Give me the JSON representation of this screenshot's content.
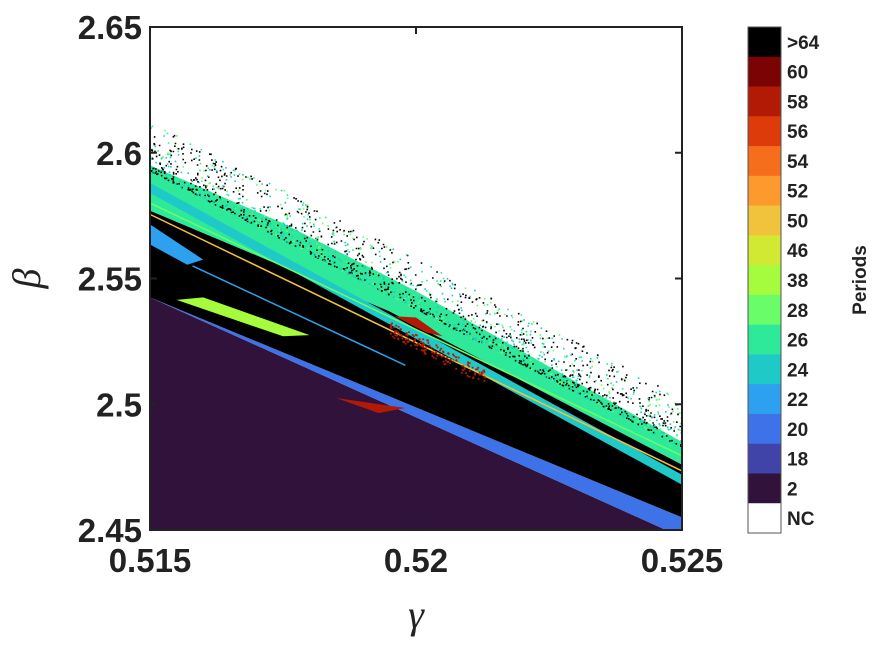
{
  "chart_data": {
    "type": "heatmap",
    "title": "",
    "xlabel": "γ",
    "ylabel": "β",
    "xlim": [
      0.515,
      0.525
    ],
    "ylim": [
      2.45,
      2.65
    ],
    "x_ticks": [
      0.515,
      0.52,
      0.525
    ],
    "x_tick_labels": [
      "0.515",
      "0.52",
      "0.525"
    ],
    "y_ticks": [
      2.45,
      2.5,
      2.55,
      2.6,
      2.65
    ],
    "y_tick_labels": [
      "2.45",
      "2.5",
      "2.55",
      "2.6",
      "2.65"
    ],
    "grid": false,
    "colorbar": {
      "title": "Periods",
      "placement": "right",
      "categories": [
        {
          "label": ">64",
          "color": "#000000"
        },
        {
          "label": "60",
          "color": "#7a0403"
        },
        {
          "label": "58",
          "color": "#b21a05"
        },
        {
          "label": "56",
          "color": "#dd3c0a"
        },
        {
          "label": "54",
          "color": "#f66e1c"
        },
        {
          "label": "52",
          "color": "#fd9a2e"
        },
        {
          "label": "50",
          "color": "#f1c23b"
        },
        {
          "label": "46",
          "color": "#d2e934"
        },
        {
          "label": "38",
          "color": "#a4fc3c"
        },
        {
          "label": "28",
          "color": "#6afd6a"
        },
        {
          "label": "26",
          "color": "#2fe99a"
        },
        {
          "label": "24",
          "color": "#1fc9c8"
        },
        {
          "label": "22",
          "color": "#2ea0f0"
        },
        {
          "label": "20",
          "color": "#3e72e8"
        },
        {
          "label": "18",
          "color": "#4043a8"
        },
        {
          "label": "2",
          "color": "#30123b"
        },
        {
          "label": "NC",
          "color": "#ffffff"
        }
      ]
    },
    "regions": [
      {
        "period": "2",
        "color": "#30123b",
        "polygon": [
          [
            0.515,
            2.45
          ],
          [
            0.515,
            2.5425
          ],
          [
            0.5247,
            2.45
          ]
        ]
      },
      {
        "period": "20",
        "color": "#3e72e8",
        "polygon": [
          [
            0.515,
            2.5425
          ],
          [
            0.5247,
            2.45
          ],
          [
            0.525,
            2.45
          ],
          [
            0.525,
            2.455
          ]
        ]
      },
      {
        "period": ">64",
        "color": "#000000",
        "polygon": [
          [
            0.515,
            2.5425
          ],
          [
            0.515,
            2.577
          ],
          [
            0.5195,
            2.537
          ],
          [
            0.525,
            2.476
          ],
          [
            0.525,
            2.455
          ]
        ]
      },
      {
        "period": "22",
        "color": "#2ea0f0",
        "polygon": [
          [
            0.515,
            2.5635
          ],
          [
            0.515,
            2.5715
          ],
          [
            0.516,
            2.5575
          ],
          [
            0.5157,
            2.5555
          ]
        ]
      },
      {
        "period": "26",
        "color": "#2fe99a",
        "polygon": [
          [
            0.515,
            2.577
          ],
          [
            0.515,
            2.595
          ],
          [
            0.5175,
            2.572
          ],
          [
            0.52,
            2.545
          ],
          [
            0.5225,
            2.515
          ],
          [
            0.525,
            2.485
          ],
          [
            0.525,
            2.476
          ],
          [
            0.5195,
            2.537
          ]
        ]
      },
      {
        "period": "24",
        "color": "#1fc9c8",
        "polygon": [
          [
            0.515,
            2.584
          ],
          [
            0.515,
            2.588
          ],
          [
            0.525,
            2.472
          ],
          [
            0.525,
            2.468
          ]
        ]
      },
      {
        "period": "38",
        "color": "#a4fc3c",
        "polygon": [
          [
            0.5155,
            2.5415
          ],
          [
            0.5175,
            2.527
          ],
          [
            0.518,
            2.5275
          ],
          [
            0.516,
            2.5425
          ]
        ]
      },
      {
        "period": "58",
        "color": "#b21a05",
        "polygon": [
          [
            0.5185,
            2.5025
          ],
          [
            0.5193,
            2.4965
          ],
          [
            0.5198,
            2.4985
          ]
        ]
      },
      {
        "period": "58",
        "color": "#b21a05",
        "polygon": [
          [
            0.5196,
            2.535
          ],
          [
            0.52,
            2.5345
          ],
          [
            0.5205,
            2.527
          ],
          [
            0.5202,
            2.5285
          ]
        ]
      }
    ]
  }
}
